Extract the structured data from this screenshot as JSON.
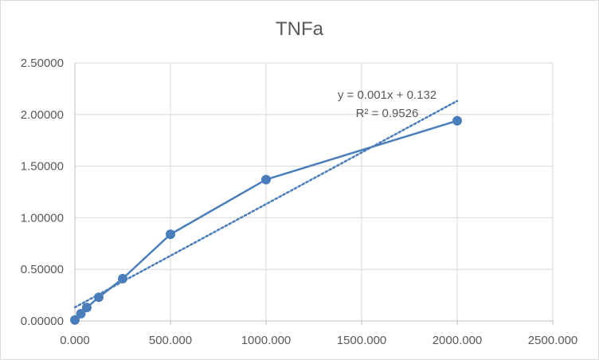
{
  "chart_data": {
    "type": "scatter",
    "title": "TNFa",
    "xlabel": "",
    "ylabel": "",
    "xlim": [
      0,
      2500
    ],
    "ylim": [
      0,
      2.5
    ],
    "x_ticks": [
      0,
      500,
      1000,
      1500,
      2000,
      2500
    ],
    "y_ticks": [
      0,
      0.5,
      1,
      1.5,
      2,
      2.5
    ],
    "x_tick_labels": [
      "0.000",
      "500.000",
      "1000.000",
      "1500.000",
      "2000.000",
      "2500.000"
    ],
    "y_tick_labels": [
      "0.00000",
      "0.50000",
      "1.00000",
      "1.50000",
      "2.00000",
      "2.50000"
    ],
    "grid": true,
    "series": [
      {
        "x": [
          0,
          31.25,
          62.5,
          125,
          250,
          500,
          1000,
          2000
        ],
        "y": [
          0.01,
          0.07,
          0.13,
          0.23,
          0.41,
          0.84,
          1.37,
          1.94
        ],
        "color": "#4a7ebb",
        "markers": true,
        "line": "solid"
      }
    ],
    "trendline": {
      "type": "linear",
      "slope": 0.001,
      "intercept": 0.132,
      "x_range": [
        0,
        2000
      ],
      "color": "#4a7ebb",
      "style": "dotted",
      "equation": "y = 0.001x + 0.132",
      "r_squared": "R² = 0.9526"
    }
  }
}
